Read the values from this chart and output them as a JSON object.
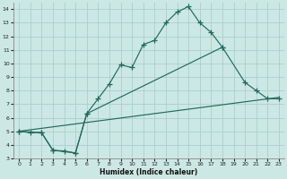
{
  "xlabel": "Humidex (Indice chaleur)",
  "bg_color": "#cce8e4",
  "grid_color": "#aacfcb",
  "line_color": "#1f6b5e",
  "xlim": [
    -0.5,
    23.5
  ],
  "ylim": [
    3,
    14.5
  ],
  "ytick_min": 3,
  "ytick_max": 14,
  "xtick_min": 0,
  "xtick_max": 23,
  "curve1_x": [
    0,
    1,
    2,
    3,
    5,
    6,
    7,
    8,
    9,
    10,
    11,
    12,
    13,
    14,
    15,
    16,
    17,
    18
  ],
  "curve1_y": [
    5.0,
    4.9,
    4.9,
    3.6,
    3.4,
    6.3,
    7.4,
    8.5,
    9.9,
    9.7,
    11.4,
    11.7,
    13.0,
    13.8,
    14.2,
    13.0,
    12.3,
    11.2
  ],
  "curve2_x": [
    0,
    2,
    3,
    4,
    5,
    6,
    18,
    20,
    21,
    22,
    23
  ],
  "curve2_y": [
    5.0,
    4.9,
    3.6,
    3.55,
    3.4,
    6.3,
    11.2,
    8.6,
    8.0,
    7.4,
    7.4
  ],
  "curve3_x": [
    0,
    23
  ],
  "curve3_y": [
    5.0,
    7.5
  ],
  "title_fontsize": 6,
  "tick_fontsize": 4.5,
  "label_fontsize": 5.5
}
